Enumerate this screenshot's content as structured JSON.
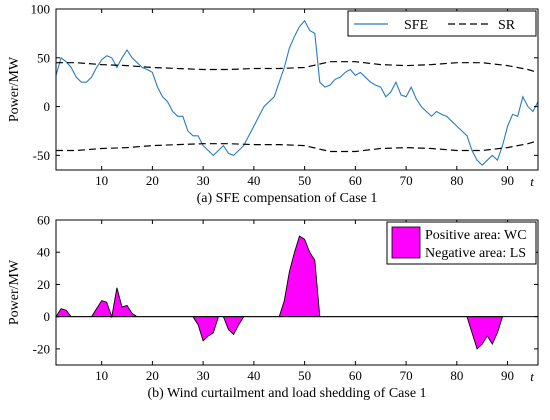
{
  "chart_data": [
    {
      "type": "line",
      "title": "(a) SFE compensation of Case 1",
      "ylabel": "Power/MW",
      "xlabel": "t",
      "xlim": [
        1,
        96
      ],
      "ylim": [
        -65,
        100
      ],
      "xticks": [
        10,
        20,
        30,
        40,
        50,
        60,
        70,
        80,
        90
      ],
      "yticks": [
        -50,
        0,
        50,
        100
      ],
      "legend": "top-right",
      "series": [
        {
          "name": "SFE",
          "color": "#2a7bbf",
          "style": "solid",
          "x": [
            1,
            2,
            3,
            4,
            5,
            6,
            7,
            8,
            9,
            10,
            11,
            12,
            13,
            14,
            15,
            16,
            17,
            18,
            19,
            20,
            21,
            22,
            23,
            24,
            25,
            26,
            27,
            28,
            29,
            30,
            31,
            32,
            33,
            34,
            35,
            36,
            37,
            38,
            39,
            40,
            41,
            42,
            43,
            44,
            45,
            46,
            47,
            48,
            49,
            50,
            51,
            52,
            53,
            54,
            55,
            56,
            57,
            58,
            59,
            60,
            61,
            62,
            63,
            64,
            65,
            66,
            67,
            68,
            69,
            70,
            71,
            72,
            73,
            74,
            75,
            76,
            77,
            78,
            79,
            80,
            81,
            82,
            83,
            84,
            85,
            86,
            87,
            88,
            89,
            90,
            91,
            92,
            93,
            94,
            95,
            96
          ],
          "values": [
            32,
            50,
            46,
            40,
            30,
            25,
            25,
            30,
            40,
            48,
            52,
            50,
            40,
            50,
            58,
            50,
            45,
            40,
            38,
            35,
            20,
            10,
            5,
            -5,
            -10,
            -10,
            -25,
            -30,
            -30,
            -40,
            -45,
            -50,
            -45,
            -40,
            -48,
            -50,
            -45,
            -40,
            -30,
            -20,
            -10,
            0,
            5,
            10,
            25,
            40,
            60,
            72,
            82,
            88,
            78,
            75,
            25,
            20,
            22,
            28,
            30,
            35,
            38,
            32,
            35,
            30,
            25,
            22,
            20,
            10,
            15,
            25,
            12,
            10,
            20,
            8,
            0,
            -5,
            -10,
            -5,
            -8,
            -10,
            -15,
            -20,
            -25,
            -30,
            -45,
            -55,
            -60,
            -55,
            -50,
            -55,
            -40,
            -20,
            -8,
            -10,
            10,
            0,
            -5,
            5
          ]
        },
        {
          "name": "SR",
          "color": "#000000",
          "style": "dashed",
          "x": [
            1,
            5,
            10,
            15,
            20,
            25,
            30,
            35,
            40,
            45,
            50,
            55,
            60,
            65,
            70,
            75,
            80,
            85,
            90,
            94,
            96
          ],
          "values": [
            45,
            45,
            43,
            42,
            40,
            39,
            38,
            38,
            39,
            39,
            40,
            46,
            46,
            43,
            42,
            43,
            45,
            45,
            42,
            38,
            35
          ]
        },
        {
          "name": "",
          "color": "#000000",
          "style": "dashed",
          "x": [
            1,
            5,
            10,
            15,
            20,
            25,
            30,
            35,
            40,
            45,
            50,
            55,
            60,
            65,
            70,
            75,
            80,
            85,
            90,
            94,
            96
          ],
          "values": [
            -45,
            -45,
            -43,
            -42,
            -40,
            -39,
            -38,
            -38,
            -39,
            -39,
            -40,
            -46,
            -46,
            -43,
            -42,
            -43,
            -45,
            -45,
            -42,
            -38,
            -35
          ]
        }
      ]
    },
    {
      "type": "area",
      "title": "(b) Wind curtailment and load shedding of Case 1",
      "ylabel": "Power/MW",
      "xlabel": "t",
      "xlim": [
        1,
        96
      ],
      "ylim": [
        -30,
        60
      ],
      "xticks": [
        10,
        20,
        30,
        40,
        50,
        60,
        70,
        80,
        90
      ],
      "yticks": [
        -20,
        0,
        20,
        40,
        60
      ],
      "fill_color": "#ff00ff",
      "legend": "top-right",
      "legend_entries": [
        "Positive area: WC",
        "Negative area: LS"
      ],
      "series": [
        {
          "name": "WC / LS",
          "x": [
            1,
            2,
            3,
            4,
            5,
            6,
            7,
            8,
            9,
            10,
            11,
            12,
            13,
            14,
            15,
            16,
            17,
            18,
            28,
            29,
            30,
            31,
            32,
            33,
            34,
            35,
            36,
            37,
            38,
            45,
            46,
            47,
            48,
            49,
            50,
            51,
            52,
            53,
            82,
            83,
            84,
            85,
            86,
            87,
            88,
            89
          ],
          "values": [
            0,
            5,
            4,
            0,
            0,
            0,
            0,
            0,
            5,
            10,
            9,
            0,
            18,
            6,
            7,
            2,
            0,
            0,
            0,
            -5,
            -15,
            -12,
            -10,
            0,
            0,
            -8,
            -11,
            -5,
            0,
            0,
            10,
            28,
            40,
            50,
            48,
            40,
            35,
            0,
            0,
            -10,
            -20,
            -17,
            -12,
            -17,
            -10,
            0
          ]
        }
      ]
    }
  ]
}
